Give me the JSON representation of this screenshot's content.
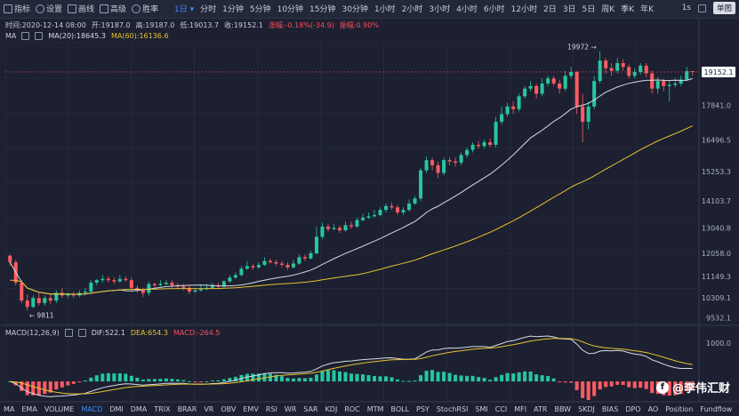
{
  "toolbar": {
    "items": [
      {
        "label": "指标",
        "icon": "indicator-icon"
      },
      {
        "label": "设置",
        "icon": "gear-icon"
      },
      {
        "label": "画线",
        "icon": "draw-line-icon"
      },
      {
        "label": "高级",
        "icon": "advanced-icon"
      },
      {
        "label": "胜率",
        "icon": "winrate-icon"
      }
    ],
    "periods": [
      "1日",
      "分时",
      "1分钟",
      "5分钟",
      "10分钟",
      "15分钟",
      "30分钟",
      "1小时",
      "2小时",
      "3小时",
      "4小时",
      "6小时",
      "12小时",
      "2日",
      "3日",
      "5日",
      "周K",
      "季K",
      "年K"
    ],
    "active_period": "1日",
    "right_label": "1s",
    "square_icon": "fullscreen-icon",
    "chip": "单图"
  },
  "infobar": {
    "time": "时间:2020-12-14 08:00",
    "open": "开:19187.0",
    "high": "高:19187.0",
    "low": "低:19013.7",
    "close": "收:19152.1",
    "change": "涨幅:-0.18%(-34.9)",
    "amplitude": "振幅:0.90%"
  },
  "ma_legend": {
    "name": "MA",
    "ma20": "MA(20):18645.3",
    "ma60": "MA(60):16136.6"
  },
  "macd_legend": {
    "name": "MACD(12,26,9)",
    "dif": "DIF:522.1",
    "dea": "DEA:654.3",
    "macd": "MACD:-264.5"
  },
  "colors": {
    "up": "#26c6a0",
    "down": "#ff5b63",
    "ma20": "#d8dbe4",
    "ma60": "#e8c233",
    "bg": "#1c2030",
    "grid": "#2a3044",
    "accent": "#3d8bff"
  },
  "tabs": [
    "MA",
    "EMA",
    "VOLUME",
    "MACD",
    "DMI",
    "DMA",
    "TRIX",
    "BRAR",
    "VR",
    "OBV",
    "EMV",
    "RSI",
    "WR",
    "SAR",
    "KDJ",
    "ROC",
    "MTM",
    "BOLL",
    "PSY",
    "StochRSI",
    "SMI",
    "CCI",
    "MFI",
    "ATR",
    "BBW",
    "SKDJ",
    "BIAS",
    "DPO",
    "AO",
    "Position",
    "Fundflow"
  ],
  "active_tab": "MACD",
  "watermark": "@李伟汇财",
  "chart_data": {
    "type": "candlestick",
    "y_ticks": [
      "19152.1",
      "17841.0",
      "16496.5",
      "15253.3",
      "14103.7",
      "13040.8",
      "12058.0",
      "11149.3",
      "10309.1",
      "9532.1"
    ],
    "macd_ticks": [
      "1000.0"
    ],
    "current_price": "19152.1",
    "annotations": [
      {
        "label": "19972"
      },
      {
        "label": "9811"
      }
    ],
    "ylim": [
      9300,
      20300
    ],
    "candles": [
      [
        11960,
        11700,
        12000,
        11550
      ],
      [
        11700,
        10900,
        11800,
        10800
      ],
      [
        10900,
        10200,
        11000,
        10100
      ],
      [
        10200,
        9950,
        10450,
        9811
      ],
      [
        9950,
        10300,
        10400,
        9900
      ],
      [
        10300,
        10100,
        10500,
        10000
      ],
      [
        10100,
        10300,
        10400,
        10000
      ],
      [
        10300,
        10200,
        10450,
        10050
      ],
      [
        10200,
        10500,
        10600,
        10100
      ],
      [
        10500,
        10400,
        10700,
        10300
      ],
      [
        10400,
        10450,
        10500,
        10300
      ],
      [
        10450,
        10400,
        10550,
        10300
      ],
      [
        10400,
        10500,
        10600,
        10350
      ],
      [
        10500,
        10550,
        10700,
        10400
      ],
      [
        10550,
        10900,
        11000,
        10450
      ],
      [
        10900,
        11000,
        11050,
        10800
      ],
      [
        11000,
        11050,
        11200,
        10900
      ],
      [
        11050,
        11000,
        11150,
        10900
      ],
      [
        11000,
        10950,
        11100,
        10850
      ],
      [
        10950,
        11050,
        11200,
        10900
      ],
      [
        11050,
        11000,
        11150,
        10950
      ],
      [
        11000,
        10700,
        11100,
        10600
      ],
      [
        10700,
        10600,
        10800,
        10500
      ],
      [
        10600,
        10500,
        10700,
        10350
      ],
      [
        10500,
        10850,
        10950,
        10400
      ],
      [
        10850,
        10800,
        10900,
        10700
      ],
      [
        10800,
        10850,
        11000,
        10750
      ],
      [
        10850,
        10900,
        11000,
        10800
      ],
      [
        10900,
        10800,
        11000,
        10700
      ],
      [
        10800,
        10750,
        10900,
        10650
      ],
      [
        10750,
        10700,
        10850,
        10600
      ],
      [
        10700,
        10550,
        10800,
        10450
      ],
      [
        10550,
        10600,
        10700,
        10500
      ],
      [
        10600,
        10650,
        10800,
        10550
      ],
      [
        10650,
        10700,
        10850,
        10600
      ],
      [
        10700,
        10800,
        10900,
        10650
      ],
      [
        10800,
        10750,
        10900,
        10650
      ],
      [
        10750,
        10950,
        11000,
        10700
      ],
      [
        10950,
        11100,
        11200,
        10900
      ],
      [
        11100,
        11200,
        11300,
        11050
      ],
      [
        11200,
        11450,
        11550,
        11150
      ],
      [
        11450,
        11550,
        11750,
        11400
      ],
      [
        11550,
        11500,
        11650,
        11400
      ],
      [
        11500,
        11600,
        11700,
        11450
      ],
      [
        11600,
        11750,
        11900,
        11550
      ],
      [
        11750,
        11700,
        11850,
        11650
      ],
      [
        11700,
        11650,
        11800,
        11550
      ],
      [
        11650,
        11600,
        11750,
        11500
      ],
      [
        11600,
        11500,
        11700,
        11400
      ],
      [
        11500,
        11650,
        11800,
        11450
      ],
      [
        11650,
        11900,
        12000,
        11600
      ],
      [
        11900,
        11850,
        12000,
        11750
      ],
      [
        11850,
        12050,
        12150,
        11800
      ],
      [
        12050,
        12700,
        13100,
        12000
      ],
      [
        12700,
        13100,
        13250,
        12600
      ],
      [
        13100,
        13000,
        13200,
        12900
      ],
      [
        13000,
        13050,
        13200,
        12950
      ],
      [
        13050,
        12950,
        13150,
        12850
      ],
      [
        12950,
        13150,
        13300,
        12900
      ],
      [
        13150,
        13100,
        13300,
        13000
      ],
      [
        13100,
        13350,
        13450,
        13050
      ],
      [
        13350,
        13450,
        13600,
        13300
      ],
      [
        13450,
        13500,
        13650,
        13400
      ],
      [
        13500,
        13550,
        13750,
        13450
      ],
      [
        13550,
        13750,
        13850,
        13500
      ],
      [
        13750,
        13900,
        14000,
        13650
      ],
      [
        13900,
        13850,
        14050,
        13750
      ],
      [
        13850,
        13650,
        13950,
        13550
      ],
      [
        13650,
        13750,
        13850,
        13550
      ],
      [
        13750,
        14000,
        14150,
        13700
      ],
      [
        14000,
        14200,
        14300,
        13950
      ],
      [
        14200,
        15300,
        15400,
        14100
      ],
      [
        15300,
        15700,
        15850,
        15200
      ],
      [
        15700,
        15500,
        15800,
        15300
      ],
      [
        15500,
        15200,
        15650,
        15000
      ],
      [
        15200,
        15700,
        15800,
        15100
      ],
      [
        15700,
        15650,
        15800,
        15500
      ],
      [
        15650,
        15600,
        15800,
        15450
      ],
      [
        15600,
        15900,
        16000,
        15500
      ],
      [
        15900,
        16100,
        16200,
        15800
      ],
      [
        16100,
        16300,
        16400,
        16000
      ],
      [
        16300,
        16250,
        16450,
        16150
      ],
      [
        16250,
        16400,
        16500,
        16150
      ],
      [
        16400,
        16300,
        16550,
        16200
      ],
      [
        16300,
        17200,
        17400,
        16200
      ],
      [
        17200,
        17500,
        17800,
        17100
      ],
      [
        17500,
        17800,
        17950,
        17400
      ],
      [
        17800,
        17700,
        18000,
        17500
      ],
      [
        17700,
        18200,
        18300,
        17600
      ],
      [
        18200,
        18500,
        18600,
        18100
      ],
      [
        18500,
        18600,
        18800,
        18400
      ],
      [
        18600,
        18300,
        18700,
        18100
      ],
      [
        18300,
        18700,
        18900,
        18200
      ],
      [
        18700,
        18900,
        19000,
        18600
      ],
      [
        18900,
        18700,
        19000,
        18600
      ],
      [
        18700,
        18500,
        18850,
        18300
      ],
      [
        18500,
        19000,
        19200,
        18400
      ],
      [
        19000,
        19150,
        19350,
        18900
      ],
      [
        19150,
        17800,
        19200,
        17500
      ],
      [
        17800,
        17200,
        18300,
        16400
      ],
      [
        17200,
        17800,
        18000,
        16900
      ],
      [
        17800,
        18800,
        19000,
        17700
      ],
      [
        18800,
        19600,
        19972,
        18700
      ],
      [
        19600,
        19300,
        19700,
        19100
      ],
      [
        19300,
        19200,
        19500,
        19000
      ],
      [
        19200,
        19500,
        19700,
        19100
      ],
      [
        19500,
        19350,
        19650,
        19200
      ],
      [
        19350,
        19000,
        19450,
        18900
      ],
      [
        19000,
        19150,
        19300,
        18900
      ],
      [
        19150,
        19400,
        19500,
        19050
      ],
      [
        19400,
        19100,
        19500,
        18950
      ],
      [
        19100,
        18500,
        19200,
        18300
      ],
      [
        18500,
        18800,
        18950,
        18300
      ],
      [
        18800,
        18600,
        18900,
        18400
      ],
      [
        18600,
        18650,
        18800,
        18000
      ],
      [
        18650,
        18700,
        18900,
        18550
      ],
      [
        18700,
        18850,
        19000,
        18600
      ],
      [
        18850,
        19187,
        19350,
        18800
      ],
      [
        19187,
        19152,
        19187,
        19013
      ]
    ]
  }
}
